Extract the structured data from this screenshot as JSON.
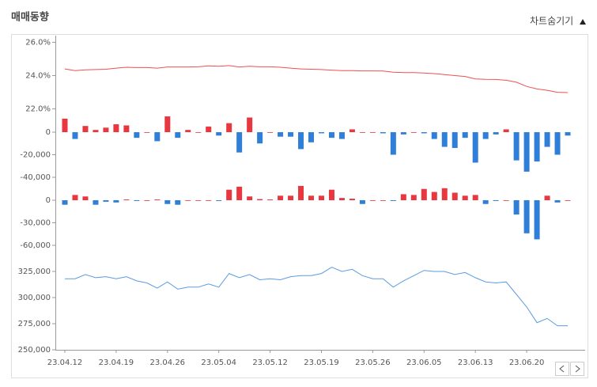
{
  "header": {
    "title": "매매동향",
    "toggle": "차트숨기기"
  },
  "chart_data": [
    {
      "type": "line",
      "color": "#f0504f",
      "ylim": [
        21.65,
        26.4
      ],
      "yticks": [
        {
          "value": 26,
          "label": "26.0%"
        },
        {
          "value": 24,
          "label": "24.0%"
        },
        {
          "value": 22,
          "label": "22.0%"
        }
      ],
      "values": [
        24.4,
        24.3,
        24.35,
        24.36,
        24.38,
        24.45,
        24.5,
        24.48,
        24.48,
        24.45,
        24.52,
        24.52,
        24.52,
        24.53,
        24.58,
        24.56,
        24.6,
        24.52,
        24.56,
        24.53,
        24.53,
        24.5,
        24.45,
        24.4,
        24.38,
        24.36,
        24.33,
        24.3,
        24.3,
        24.28,
        24.28,
        24.27,
        24.2,
        24.18,
        24.18,
        24.16,
        24.12,
        24.06,
        24.0,
        23.95,
        23.8,
        23.78,
        23.77,
        23.72,
        23.6,
        23.35,
        23.2,
        23.12,
        23.0,
        22.98
      ]
    },
    {
      "type": "bar",
      "colors": {
        "positive": "#e8373f",
        "negative": "#2f7fd9"
      },
      "ylim": [
        -45600,
        15450
      ],
      "yticks": [
        0,
        {
          "value": -20000,
          "label": "-20,000"
        },
        {
          "value": -40000,
          "label": "-40,000"
        }
      ],
      "values": [
        12000,
        -6000,
        5500,
        2000,
        4000,
        7000,
        6000,
        -5000,
        0,
        -8000,
        14000,
        -5000,
        2000,
        0,
        5000,
        -3000,
        8000,
        -18000,
        13000,
        -10000,
        0,
        -4000,
        -4000,
        -15000,
        -9000,
        -1000,
        -5000,
        -6000,
        2500,
        0,
        0,
        -1000,
        -20000,
        -2000,
        0,
        -1000,
        -6000,
        -13000,
        -14000,
        -5000,
        -27000,
        -6000,
        -2000,
        2500,
        -25000,
        -35000,
        -26000,
        -13000,
        -20000,
        -3000
      ]
    },
    {
      "type": "bar",
      "colors": {
        "positive": "#e8373f",
        "negative": "#2f7fd9"
      },
      "ylim": [
        -70500,
        22100
      ],
      "yticks": [
        0,
        {
          "value": -30000,
          "label": "-30,000"
        },
        {
          "value": -60000,
          "label": "-60,000"
        }
      ],
      "values": [
        -6000,
        7000,
        5000,
        -6000,
        -2000,
        -3000,
        1000,
        -1000,
        0,
        1000,
        -5000,
        -6000,
        0,
        0,
        0,
        -1000,
        14000,
        18000,
        5000,
        1500,
        1000,
        6000,
        6000,
        19000,
        6000,
        6000,
        14000,
        3000,
        2000,
        -5000,
        0,
        0,
        -1000,
        8000,
        7000,
        15000,
        11000,
        16000,
        10000,
        6000,
        7000,
        -5000,
        -1000,
        0,
        -19000,
        -44000,
        -52000,
        6000,
        -3000,
        0
      ]
    },
    {
      "type": "line",
      "color": "#5b9be0",
      "ylim": [
        250000,
        342400
      ],
      "yticks": [
        {
          "value": 325000,
          "label": "325,000"
        },
        {
          "value": 300000,
          "label": "300,000"
        },
        {
          "value": 275000,
          "label": "275,000"
        },
        {
          "value": 250000,
          "label": "250,000"
        }
      ],
      "categories": [
        "23.04.12",
        null,
        null,
        null,
        null,
        "23.04.19",
        null,
        null,
        null,
        null,
        "23.04.26",
        null,
        null,
        null,
        null,
        "23.05.04",
        null,
        null,
        null,
        null,
        "23.05.12",
        null,
        null,
        null,
        null,
        "23.05.19",
        null,
        null,
        null,
        null,
        "23.05.26",
        null,
        null,
        null,
        null,
        "23.06.05",
        null,
        null,
        null,
        null,
        "23.06.13",
        null,
        null,
        null,
        null,
        "23.06.20",
        null,
        null,
        null,
        null
      ],
      "values": [
        318000,
        318000,
        322000,
        319000,
        320000,
        318000,
        320000,
        316000,
        314000,
        309000,
        315000,
        308000,
        310000,
        310000,
        313000,
        310000,
        323000,
        319000,
        322000,
        317000,
        318000,
        317000,
        320000,
        321000,
        321000,
        323000,
        329000,
        325000,
        327000,
        321000,
        318000,
        318000,
        310000,
        316000,
        321000,
        326000,
        325000,
        325000,
        322000,
        324000,
        319000,
        315000,
        314000,
        315000,
        303000,
        291000,
        276000,
        280000,
        273000,
        273000
      ]
    }
  ]
}
